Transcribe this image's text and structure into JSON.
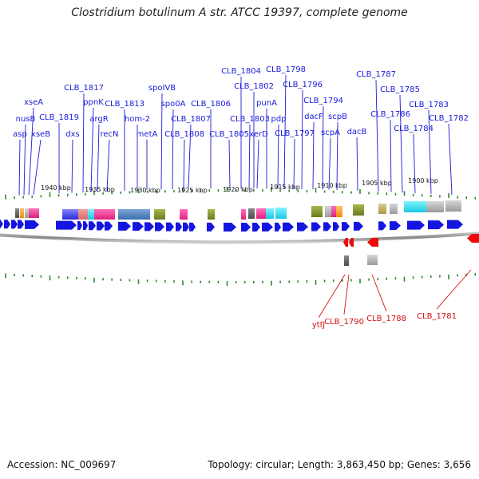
{
  "title": "Clostridium botulinum A str. ATCC 19397, complete genome",
  "footer": {
    "accession": "Accession: NC_009697",
    "summary": "Topology: circular; Length: 3,863,450 bp; Genes: 3,656"
  },
  "colors": {
    "label_top": "#1a1adb",
    "label_bottom": "#d41010",
    "gene_forward": "#1515e0",
    "gene_reverse": "#ee0a0a",
    "tick": "#2d8a2d",
    "backbone": "#888888"
  },
  "scale": [
    {
      "label": "1940 kbp",
      "kbp": 1940
    },
    {
      "label": "1935 kbp",
      "kbp": 1935
    },
    {
      "label": "1930 kbp",
      "kbp": 1930
    },
    {
      "label": "1925 kbp",
      "kbp": 1925
    },
    {
      "label": "1920 kbp",
      "kbp": 1920
    },
    {
      "label": "1915 kbp",
      "kbp": 1915
    },
    {
      "label": "1910 kbp",
      "kbp": 1910
    },
    {
      "label": "1905 kbp",
      "kbp": 1905
    },
    {
      "label": "1900 kbp",
      "kbp": 1900
    }
  ],
  "top_labels": [
    {
      "text": "asp"
    },
    {
      "text": "nusB"
    },
    {
      "text": "xseA"
    },
    {
      "text": "xseB"
    },
    {
      "text": "CLB_1819"
    },
    {
      "text": "dxs"
    },
    {
      "text": "CLB_1817"
    },
    {
      "text": "ppnK"
    },
    {
      "text": "argR"
    },
    {
      "text": "recN"
    },
    {
      "text": "CLB_1813"
    },
    {
      "text": "hom-2"
    },
    {
      "text": "metA"
    },
    {
      "text": "spoIVB"
    },
    {
      "text": "spo0A"
    },
    {
      "text": "CLB_1808"
    },
    {
      "text": "CLB_1807"
    },
    {
      "text": "CLB_1806"
    },
    {
      "text": "CLB_1805"
    },
    {
      "text": "CLB_1804"
    },
    {
      "text": "CLB_1803"
    },
    {
      "text": "CLB_1802"
    },
    {
      "text": "xerD"
    },
    {
      "text": "punA"
    },
    {
      "text": "pdp"
    },
    {
      "text": "CLB_1798"
    },
    {
      "text": "CLB_1797"
    },
    {
      "text": "CLB_1796"
    },
    {
      "text": "dacF"
    },
    {
      "text": "CLB_1794"
    },
    {
      "text": "scpA"
    },
    {
      "text": "scpB"
    },
    {
      "text": "dacB"
    },
    {
      "text": "CLB_1787"
    },
    {
      "text": "CLB_1786"
    },
    {
      "text": "CLB_1785"
    },
    {
      "text": "CLB_1784"
    },
    {
      "text": "CLB_1783"
    },
    {
      "text": "CLB_1782"
    }
  ],
  "bottom_labels": [
    {
      "text": "ytfJ"
    },
    {
      "text": "CLB_1790"
    },
    {
      "text": "CLB_1788"
    },
    {
      "text": "CLB_1781"
    }
  ]
}
